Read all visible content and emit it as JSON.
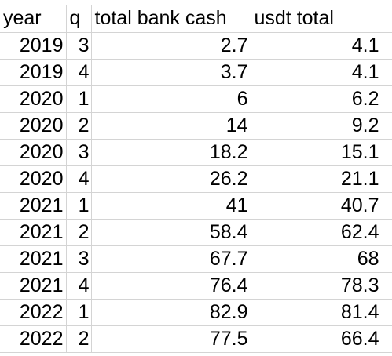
{
  "headers": {
    "year": "year",
    "q": "q",
    "bank": "total bank cash",
    "usdt": "usdt total"
  },
  "rows": [
    {
      "year": "2019",
      "q": "3",
      "bank": "2.7",
      "usdt": "4.1"
    },
    {
      "year": "2019",
      "q": "4",
      "bank": "3.7",
      "usdt": "4.1"
    },
    {
      "year": "2020",
      "q": "1",
      "bank": "6",
      "usdt": "6.2"
    },
    {
      "year": "2020",
      "q": "2",
      "bank": "14",
      "usdt": "9.2"
    },
    {
      "year": "2020",
      "q": "3",
      "bank": "18.2",
      "usdt": "15.1"
    },
    {
      "year": "2020",
      "q": "4",
      "bank": "26.2",
      "usdt": "21.1"
    },
    {
      "year": "2021",
      "q": "1",
      "bank": "41",
      "usdt": "40.7"
    },
    {
      "year": "2021",
      "q": "2",
      "bank": "58.4",
      "usdt": "62.4"
    },
    {
      "year": "2021",
      "q": "3",
      "bank": "67.7",
      "usdt": "68"
    },
    {
      "year": "2021",
      "q": "4",
      "bank": "76.4",
      "usdt": "78.3"
    },
    {
      "year": "2022",
      "q": "1",
      "bank": "82.9",
      "usdt": "81.4"
    },
    {
      "year": "2022",
      "q": "2",
      "bank": "77.5",
      "usdt": "66.4"
    }
  ]
}
